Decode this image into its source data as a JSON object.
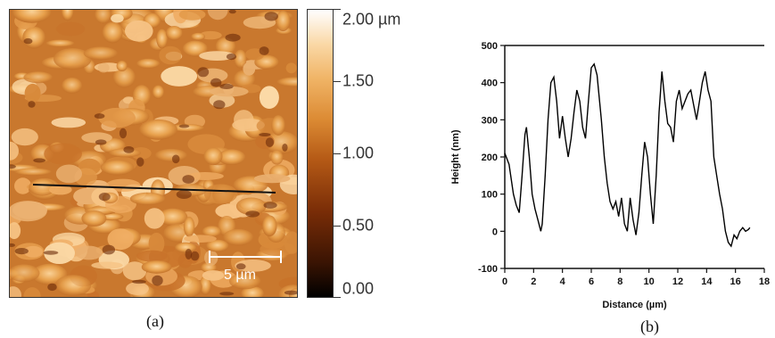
{
  "panel_a": {
    "caption": "(a)",
    "scale_bar_label": "5 µm",
    "colorbar": {
      "labels": [
        "2.00 µm",
        "1.50",
        "1.00",
        "0.50",
        "0.00"
      ],
      "values": [
        2.0,
        1.5,
        1.0,
        0.5,
        0.0
      ],
      "range": [
        0,
        2.0
      ]
    },
    "colors": {
      "low": "#000000",
      "mid": "#b55a16",
      "high": "#ffffff"
    }
  },
  "panel_b": {
    "caption": "(b)"
  },
  "chart_data": {
    "type": "line",
    "xlabel": "Distance (µm)",
    "ylabel": "Height (nm)",
    "xlim": [
      0,
      18
    ],
    "ylim": [
      -100,
      500
    ],
    "xticks": [
      0,
      2,
      4,
      6,
      8,
      10,
      12,
      14,
      16,
      18
    ],
    "yticks": [
      -100,
      0,
      100,
      200,
      300,
      400,
      500
    ],
    "grid": false,
    "series": [
      {
        "color": "#000000",
        "x": [
          0,
          0.3,
          0.6,
          0.8,
          1.0,
          1.2,
          1.4,
          1.5,
          1.7,
          1.9,
          2.1,
          2.3,
          2.5,
          2.6,
          2.8,
          3.0,
          3.2,
          3.4,
          3.6,
          3.8,
          4.0,
          4.2,
          4.4,
          4.6,
          4.8,
          5.0,
          5.2,
          5.4,
          5.6,
          5.8,
          6.0,
          6.2,
          6.4,
          6.5,
          6.7,
          6.9,
          7.1,
          7.3,
          7.5,
          7.7,
          7.9,
          8.1,
          8.3,
          8.5,
          8.7,
          8.9,
          9.1,
          9.3,
          9.5,
          9.7,
          9.9,
          10.1,
          10.3,
          10.5,
          10.7,
          10.9,
          11.1,
          11.3,
          11.5,
          11.7,
          11.9,
          12.1,
          12.3,
          12.5,
          12.7,
          12.9,
          13.1,
          13.3,
          13.5,
          13.7,
          13.9,
          14.1,
          14.3,
          14.5,
          14.7,
          14.9,
          15.1,
          15.3,
          15.5,
          15.7,
          15.9,
          16.1,
          16.3,
          16.5,
          16.7,
          16.9,
          17.0
        ],
        "y": [
          210,
          180,
          100,
          70,
          50,
          150,
          260,
          280,
          200,
          100,
          60,
          30,
          0,
          20,
          150,
          300,
          400,
          415,
          350,
          250,
          310,
          250,
          200,
          250,
          320,
          380,
          350,
          280,
          250,
          350,
          440,
          450,
          420,
          380,
          300,
          200,
          130,
          80,
          60,
          80,
          40,
          90,
          20,
          0,
          90,
          30,
          -10,
          50,
          150,
          240,
          200,
          100,
          20,
          150,
          320,
          430,
          350,
          290,
          280,
          240,
          350,
          380,
          330,
          350,
          370,
          380,
          340,
          300,
          350,
          400,
          430,
          380,
          350,
          200,
          150,
          100,
          60,
          0,
          -30,
          -40,
          -10,
          -20,
          0,
          10,
          0,
          5,
          10
        ]
      }
    ]
  }
}
